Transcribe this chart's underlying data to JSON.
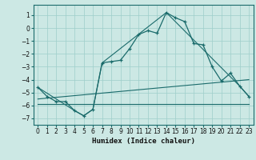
{
  "xlabel": "Humidex (Indice chaleur)",
  "bg_color": "#cce8e4",
  "line_color": "#1a6b6b",
  "grid_color": "#9ececa",
  "xlim": [
    -0.5,
    23.5
  ],
  "ylim": [
    -7.5,
    1.8
  ],
  "yticks": [
    1,
    0,
    -1,
    -2,
    -3,
    -4,
    -5,
    -6,
    -7
  ],
  "xticks": [
    0,
    1,
    2,
    3,
    4,
    5,
    6,
    7,
    8,
    9,
    10,
    11,
    12,
    13,
    14,
    15,
    16,
    17,
    18,
    19,
    20,
    21,
    22,
    23
  ],
  "main_line_x": [
    0,
    1,
    2,
    3,
    4,
    5,
    6,
    7,
    8,
    9,
    10,
    11,
    12,
    13,
    14,
    15,
    16,
    17,
    18,
    19,
    20,
    21,
    22,
    23
  ],
  "main_line_y": [
    -4.6,
    -5.3,
    -5.7,
    -5.7,
    -6.4,
    -6.8,
    -6.3,
    -2.7,
    -2.6,
    -2.5,
    -1.6,
    -0.5,
    -0.2,
    -0.4,
    1.2,
    0.8,
    0.5,
    -1.2,
    -1.3,
    -3.0,
    -4.1,
    -3.5,
    -4.5,
    -5.3
  ],
  "line2_x": [
    0,
    4,
    5,
    6,
    7,
    14,
    22,
    23
  ],
  "line2_y": [
    -4.6,
    -6.4,
    -6.8,
    -6.3,
    -2.7,
    1.2,
    -4.5,
    -5.3
  ],
  "line3_x": [
    0,
    23
  ],
  "line3_y": [
    -5.5,
    -4.0
  ],
  "line4_x": [
    0,
    23
  ],
  "line4_y": [
    -5.9,
    -5.9
  ]
}
